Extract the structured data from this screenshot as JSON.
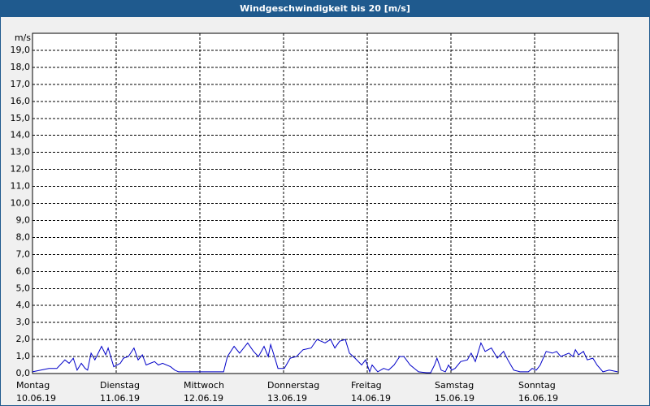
{
  "chart_data": {
    "type": "line",
    "title": "Windgeschwindigkeit bis 20 [m/s]",
    "y_label": "m/s",
    "xlim": [
      0,
      168
    ],
    "xticks": [
      {
        "value": 0,
        "label": [
          "Montag",
          "10.06.19"
        ]
      },
      {
        "value": 24,
        "label": [
          "Dienstag",
          "11.06.19"
        ]
      },
      {
        "value": 48,
        "label": [
          "Mittwoch",
          "12.06.19"
        ]
      },
      {
        "value": 72,
        "label": [
          "Donnerstag",
          "13.06.19"
        ]
      },
      {
        "value": 96,
        "label": [
          "Freitag",
          "14.06.19"
        ]
      },
      {
        "value": 120,
        "label": [
          "Samstag",
          "15.06.19"
        ]
      },
      {
        "value": 144,
        "label": [
          "Sonntag",
          "16.06.19"
        ]
      }
    ],
    "ylim": [
      0,
      20
    ],
    "yticks": [
      {
        "value": 0,
        "label": "0,0"
      },
      {
        "value": 1,
        "label": "1,0"
      },
      {
        "value": 2,
        "label": "2,0"
      },
      {
        "value": 3,
        "label": "3,0"
      },
      {
        "value": 4,
        "label": "4,0"
      },
      {
        "value": 5,
        "label": "5,0"
      },
      {
        "value": 6,
        "label": "6,0"
      },
      {
        "value": 7,
        "label": "7,0"
      },
      {
        "value": 8,
        "label": "8,0"
      },
      {
        "value": 9,
        "label": "9,0"
      },
      {
        "value": 10,
        "label": "10,0"
      },
      {
        "value": 11,
        "label": "11,0"
      },
      {
        "value": 12,
        "label": "12,0"
      },
      {
        "value": 13,
        "label": "13,0"
      },
      {
        "value": 14,
        "label": "14,0"
      },
      {
        "value": 15,
        "label": "15,0"
      },
      {
        "value": 16,
        "label": "16,0"
      },
      {
        "value": 17,
        "label": "17,0"
      },
      {
        "value": 18,
        "label": "18,0"
      },
      {
        "value": 19,
        "label": "19,0"
      }
    ],
    "grid": true,
    "color": "#0000c8",
    "x": [
      0,
      4.7,
      7,
      9.3,
      10.5,
      11.7,
      12.8,
      14,
      15.1,
      15.8,
      16.8,
      17.9,
      19.8,
      21,
      21.7,
      23.3,
      25.2,
      26.1,
      27.5,
      29.1,
      30.3,
      31.5,
      32.6,
      33.8,
      35,
      36.1,
      37.3,
      39.6,
      40.8,
      41.9,
      48,
      54.8,
      55.9,
      57.8,
      59.4,
      61.7,
      63.4,
      64.8,
      66.4,
      67.6,
      68.3,
      69.4,
      70.4,
      72.2,
      73.9,
      75.7,
      77.6,
      79.9,
      81.6,
      83.9,
      85.5,
      86.7,
      88.1,
      89.7,
      90.9,
      92.5,
      94.4,
      95.5,
      96.7,
      97.4,
      99,
      100.7,
      102.1,
      103.7,
      105.3,
      106.5,
      108.3,
      110.7,
      113,
      114.2,
      115.3,
      116,
      117.2,
      118.4,
      119.3,
      120.2,
      121.2,
      122.8,
      124.7,
      125.8,
      127,
      128.6,
      129.8,
      131.6,
      133.3,
      135.1,
      136.3,
      138,
      139.8,
      142.2,
      143.3,
      144.5,
      145.6,
      147.3,
      149.1,
      150.3,
      151.5,
      153.8,
      155,
      155.7,
      156.6,
      158,
      159.1,
      160.7,
      161.9,
      163.6,
      165.4,
      167.8
    ],
    "values": [
      0.1,
      0.3,
      0.3,
      0.8,
      0.6,
      0.9,
      0.2,
      0.6,
      0.3,
      0.2,
      1.2,
      0.8,
      1.6,
      1.1,
      1.5,
      0.4,
      0.6,
      0.9,
      1.0,
      1.5,
      0.8,
      1.1,
      0.5,
      0.6,
      0.7,
      0.5,
      0.6,
      0.4,
      0.2,
      0.1,
      0.1,
      0.1,
      1.0,
      1.6,
      1.2,
      1.8,
      1.3,
      1.0,
      1.6,
      1.0,
      1.7,
      1.0,
      0.3,
      0.3,
      0.9,
      1.0,
      1.4,
      1.5,
      2.0,
      1.8,
      2.0,
      1.5,
      1.9,
      2.0,
      1.2,
      0.9,
      0.5,
      0.8,
      0.1,
      0.5,
      0.1,
      0.3,
      0.2,
      0.5,
      1.0,
      1.0,
      0.5,
      0.1,
      0.05,
      0.05,
      0.5,
      0.9,
      0.2,
      0.1,
      0.5,
      0.2,
      0.3,
      0.7,
      0.8,
      1.2,
      0.7,
      1.8,
      1.3,
      1.5,
      0.9,
      1.3,
      0.8,
      0.2,
      0.1,
      0.1,
      0.3,
      0.2,
      0.5,
      1.3,
      1.2,
      1.3,
      1.0,
      1.2,
      1.0,
      1.4,
      1.1,
      1.3,
      0.8,
      0.9,
      0.5,
      0.1,
      0.2,
      0.1
    ]
  }
}
